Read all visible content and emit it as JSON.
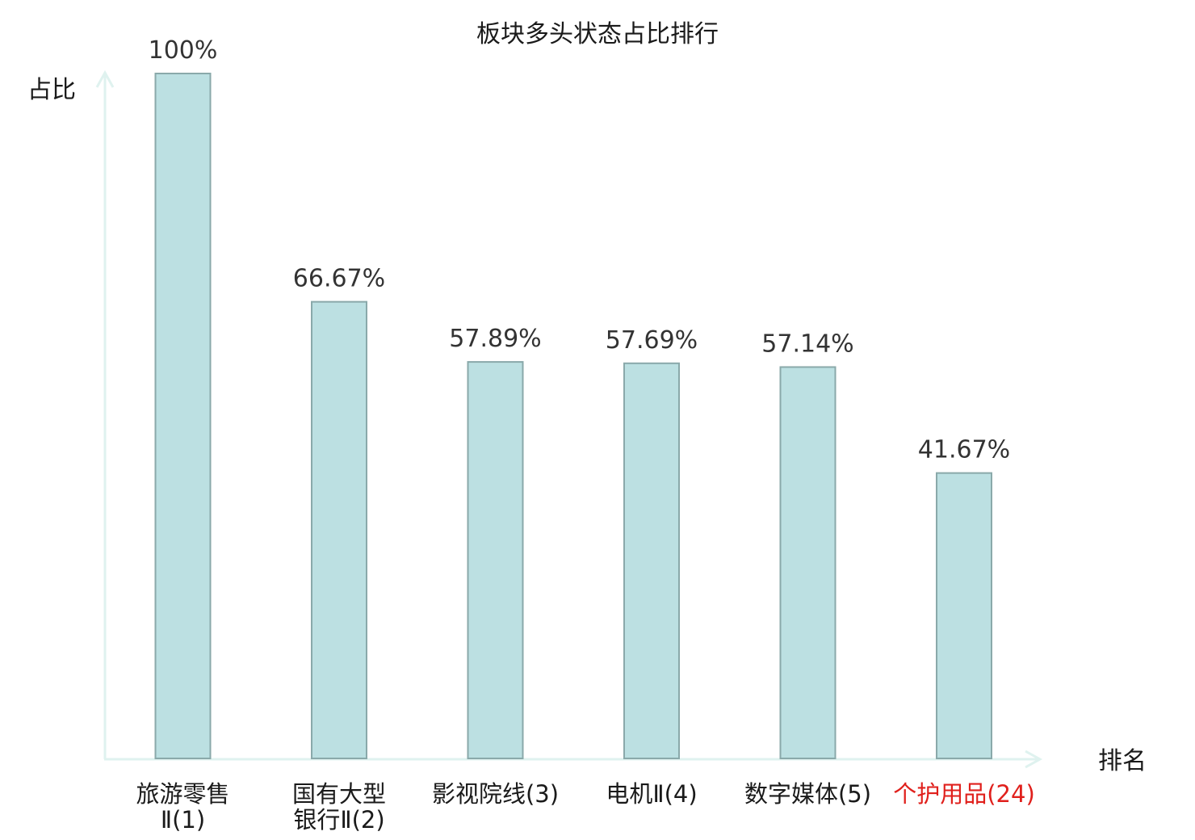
{
  "chart_data": {
    "type": "bar",
    "title": "板块多头状态占比排行",
    "ylabel": "占比",
    "xlabel": "排名",
    "categories": [
      {
        "lines": [
          "旅游零售",
          "Ⅱ(1)"
        ],
        "highlight": false
      },
      {
        "lines": [
          "国有大型",
          "银行Ⅱ(2)"
        ],
        "highlight": false
      },
      {
        "lines": [
          "影视院线(3)"
        ],
        "highlight": false
      },
      {
        "lines": [
          "电机Ⅱ(4)"
        ],
        "highlight": false
      },
      {
        "lines": [
          "数字媒体(5)"
        ],
        "highlight": false
      },
      {
        "lines": [
          "个护用品(24)"
        ],
        "highlight": true
      }
    ],
    "values": [
      100,
      66.67,
      57.89,
      57.69,
      57.14,
      41.67
    ],
    "value_labels": [
      "100%",
      "66.67%",
      "57.89%",
      "57.69%",
      "57.14%",
      "41.67%"
    ],
    "ylim": [
      0,
      100
    ],
    "grid": false,
    "colors": {
      "bar_fill": "#bce0e2",
      "bar_stroke": "#8aa9aa",
      "axis": "#dff2ef",
      "highlight_text": "#e0201c",
      "normal_text": "#1a1a1a"
    }
  }
}
